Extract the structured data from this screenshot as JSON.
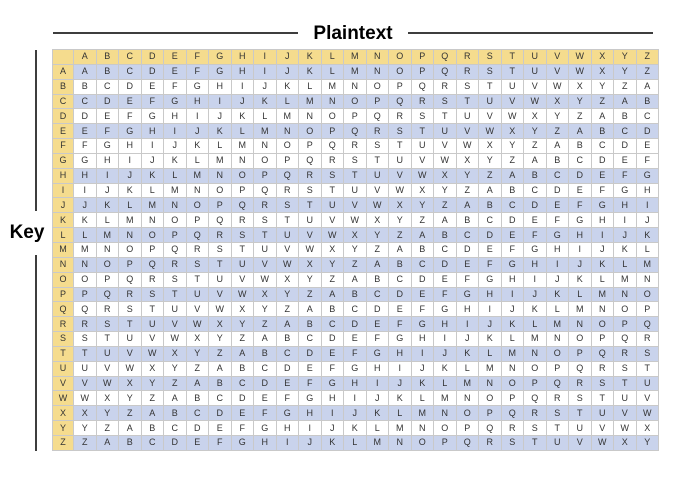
{
  "header": {
    "title": "Plaintext"
  },
  "sidebar": {
    "key_label": "Key"
  },
  "table": {
    "corner_label": "",
    "plaintext_letters": [
      "A",
      "B",
      "C",
      "D",
      "E",
      "F",
      "G",
      "H",
      "I",
      "J",
      "K",
      "L",
      "M",
      "N",
      "O",
      "P",
      "Q",
      "R",
      "S",
      "T",
      "U",
      "V",
      "W",
      "X",
      "Y",
      "Z"
    ],
    "rows": [
      {
        "key": "A",
        "letters": "ABCDEFGHIJKLMNOPQRSTUVWXYZ",
        "shaded": true
      },
      {
        "key": "B",
        "letters": "BCDEFGHIJKLMNOPQRSTUVWXYZA",
        "shaded": false
      },
      {
        "key": "C",
        "letters": "CDEFGHIJKLMNOPQRSTUVWXYZAB",
        "shaded": true
      },
      {
        "key": "D",
        "letters": "DEFGHIJKLMNOPQRSTUVWXYZABC",
        "shaded": false
      },
      {
        "key": "E",
        "letters": "EFGHIJKLMNOPQRSTUVWXYZABCD",
        "shaded": true
      },
      {
        "key": "F",
        "letters": "FGHIJKLMNOPQRSTUVWXYZABCDE",
        "shaded": false
      },
      {
        "key": "G",
        "letters": "GHIJKLMNOPQRSTUVWXYZABCDEF",
        "shaded": false
      },
      {
        "key": "H",
        "letters": "HIJKLMNOPQRSTUVWXYZABCDEFG",
        "shaded": true
      },
      {
        "key": "I",
        "letters": "IJKLMNOPQRSTUVWXYZABCDEFGH",
        "shaded": false
      },
      {
        "key": "J",
        "letters": "JKLMNOPQRSTUVWXYZABCDEFGHI",
        "shaded": true
      },
      {
        "key": "K",
        "letters": "KLMNOPQRSTUVWXYZABCDEFGHIJ",
        "shaded": false
      },
      {
        "key": "L",
        "letters": "LMNOPQRSTUVWXYZABCDEFGHIJK",
        "shaded": true
      },
      {
        "key": "M",
        "letters": "MNOPQRSTUVWXYZABCDEFGHIJKL",
        "shaded": false
      },
      {
        "key": "N",
        "letters": "NOPQRSTUVWXYZABCDEFGHIJKLM",
        "shaded": true
      },
      {
        "key": "O",
        "letters": "OPQRSTUVWXYZABCDEFGHIJKLMN",
        "shaded": false
      },
      {
        "key": "P",
        "letters": "PQRSTUVWXYZABCDEFGHIJKLMNO",
        "shaded": true
      },
      {
        "key": "Q",
        "letters": "QRSTUVWXYZABCDEFGHIJKLMNOP",
        "shaded": false
      },
      {
        "key": "R",
        "letters": "RSTUVWXYZABCDEFGHIJKLMNOPQ",
        "shaded": true
      },
      {
        "key": "S",
        "letters": "STUVWXYZABCDEFGHIJKLMNOPQR",
        "shaded": false
      },
      {
        "key": "T",
        "letters": "TUVWXYZABCDEFGHIJKLMNOPQRS",
        "shaded": true
      },
      {
        "key": "U",
        "letters": "UVWXYZABCDEFGHIJKLMNOPQRST",
        "shaded": false
      },
      {
        "key": "V",
        "letters": "VWXYZABCDEFGHIJKLMNOPQRSTU",
        "shaded": true
      },
      {
        "key": "W",
        "letters": "WXYZABCDEFGHIJKLMNOPQRSTUV",
        "shaded": false
      },
      {
        "key": "X",
        "letters": "XYZABCDEFGHIJKLMNOPQRSTUVW",
        "shaded": true
      },
      {
        "key": "Y",
        "letters": "YZABCDEFGHIJKLMNOPQRSTUVWX",
        "shaded": false
      },
      {
        "key": "Z",
        "letters": "ZABCDEFGHIJKLMNOPQRSTUVWXY",
        "shaded": true
      }
    ]
  },
  "colors": {
    "header_bg": "#f5dc8e",
    "shaded_row_bg": "#c9d3ec",
    "unshaded_row_bg": "#ffffff",
    "grid_line": "#c9c9c9",
    "rule_line": "#3d3d3d",
    "cell_text": "#333333",
    "label_text": "#000000"
  }
}
